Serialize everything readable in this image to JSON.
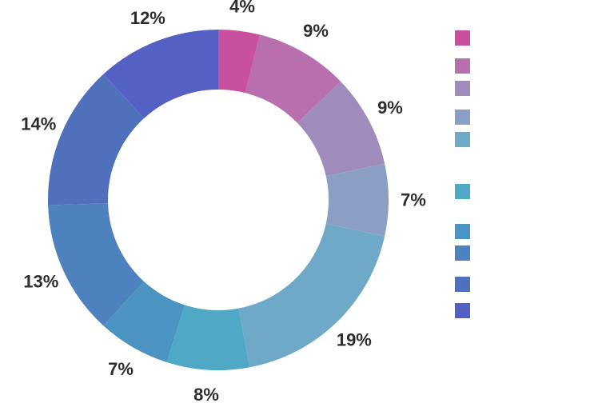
{
  "chart_data": {
    "type": "pie",
    "title": "",
    "donut": true,
    "legend_position": "right",
    "slices": [
      {
        "label": "",
        "value": 4,
        "value_label": "4%",
        "color": "#c9509e"
      },
      {
        "label": "",
        "value": 9,
        "value_label": "9%",
        "color": "#b86fae"
      },
      {
        "label": "",
        "value": 9,
        "value_label": "9%",
        "color": "#a08bbd"
      },
      {
        "label": "",
        "value": 7,
        "value_label": "7%",
        "color": "#8b9fc4"
      },
      {
        "label": "",
        "value": 19,
        "value_label": "19%",
        "color": "#6ea9c7"
      },
      {
        "label": "",
        "value": 8,
        "value_label": "8%",
        "color": "#4fa8c6"
      },
      {
        "label": "",
        "value": 7,
        "value_label": "7%",
        "color": "#4a93c2"
      },
      {
        "label": "",
        "value": 13,
        "value_label": "13%",
        "color": "#4d82be"
      },
      {
        "label": "",
        "value": 14,
        "value_label": "14%",
        "color": "#4f70bb"
      },
      {
        "label": "",
        "value": 12,
        "value_label": "12%",
        "color": "#5460c4"
      }
    ]
  }
}
